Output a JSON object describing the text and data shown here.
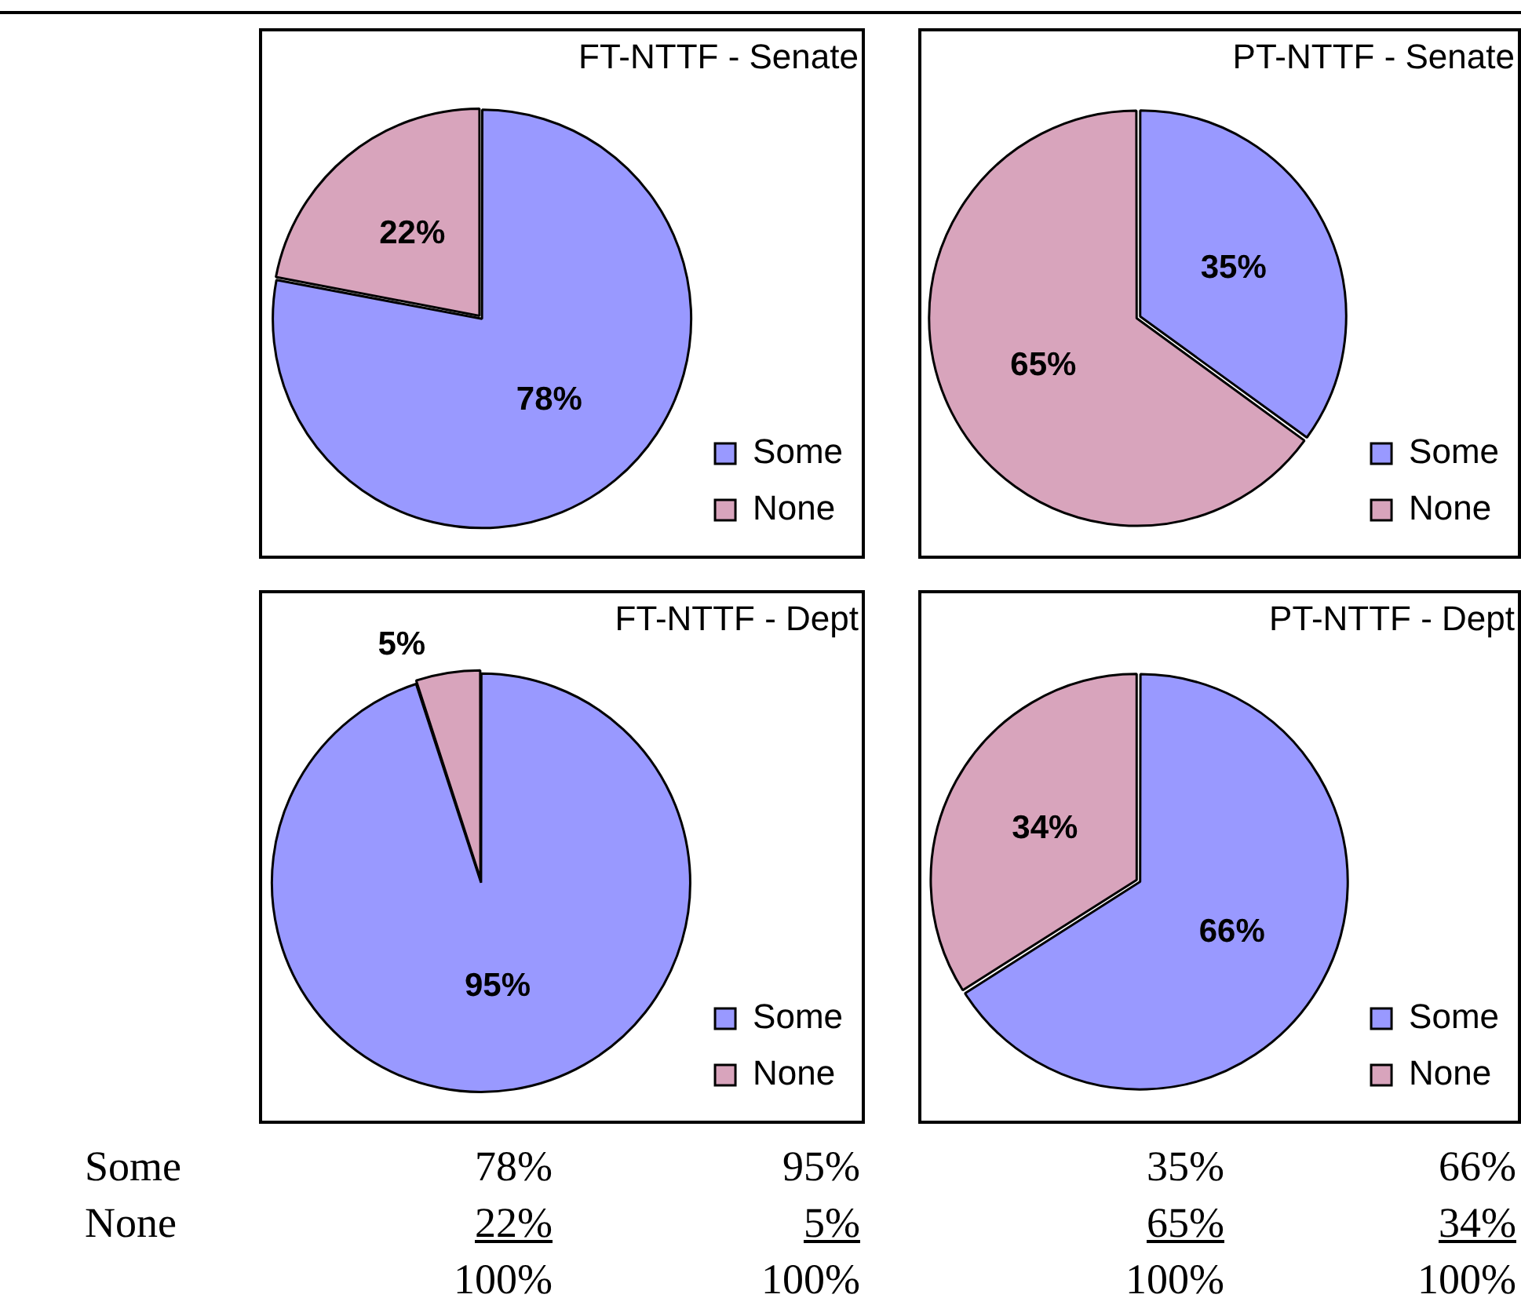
{
  "chart_data": [
    {
      "type": "pie",
      "title": "FT-NTTF - Senate",
      "categories": [
        "Some",
        "None"
      ],
      "values": [
        78,
        22
      ],
      "colors": [
        "#9999ff",
        "#d8a4bc"
      ],
      "value_labels": [
        "78%",
        "22%"
      ],
      "legend": "bottom right"
    },
    {
      "type": "pie",
      "title": "PT-NTTF - Senate",
      "categories": [
        "Some",
        "None"
      ],
      "values": [
        35,
        65
      ],
      "colors": [
        "#9999ff",
        "#d8a4bc"
      ],
      "value_labels": [
        "35%",
        "65%"
      ],
      "legend": "bottom right"
    },
    {
      "type": "pie",
      "title": "FT-NTTF - Dept",
      "categories": [
        "Some",
        "None"
      ],
      "values": [
        95,
        5
      ],
      "colors": [
        "#9999ff",
        "#d8a4bc"
      ],
      "value_labels": [
        "95%",
        "5%"
      ],
      "legend": "bottom right"
    },
    {
      "type": "pie",
      "title": "PT-NTTF - Dept",
      "categories": [
        "Some",
        "None"
      ],
      "values": [
        66,
        34
      ],
      "colors": [
        "#9999ff",
        "#d8a4bc"
      ],
      "value_labels": [
        "66%",
        "34%"
      ],
      "legend": "bottom right"
    },
    {
      "type": "other",
      "annotations": [
        "Some",
        "78%",
        "95%",
        "35%",
        "66%",
        "None",
        "22%",
        "5%",
        "65%",
        "34%",
        "100%",
        "100%",
        "100%",
        "100%"
      ]
    }
  ]
}
